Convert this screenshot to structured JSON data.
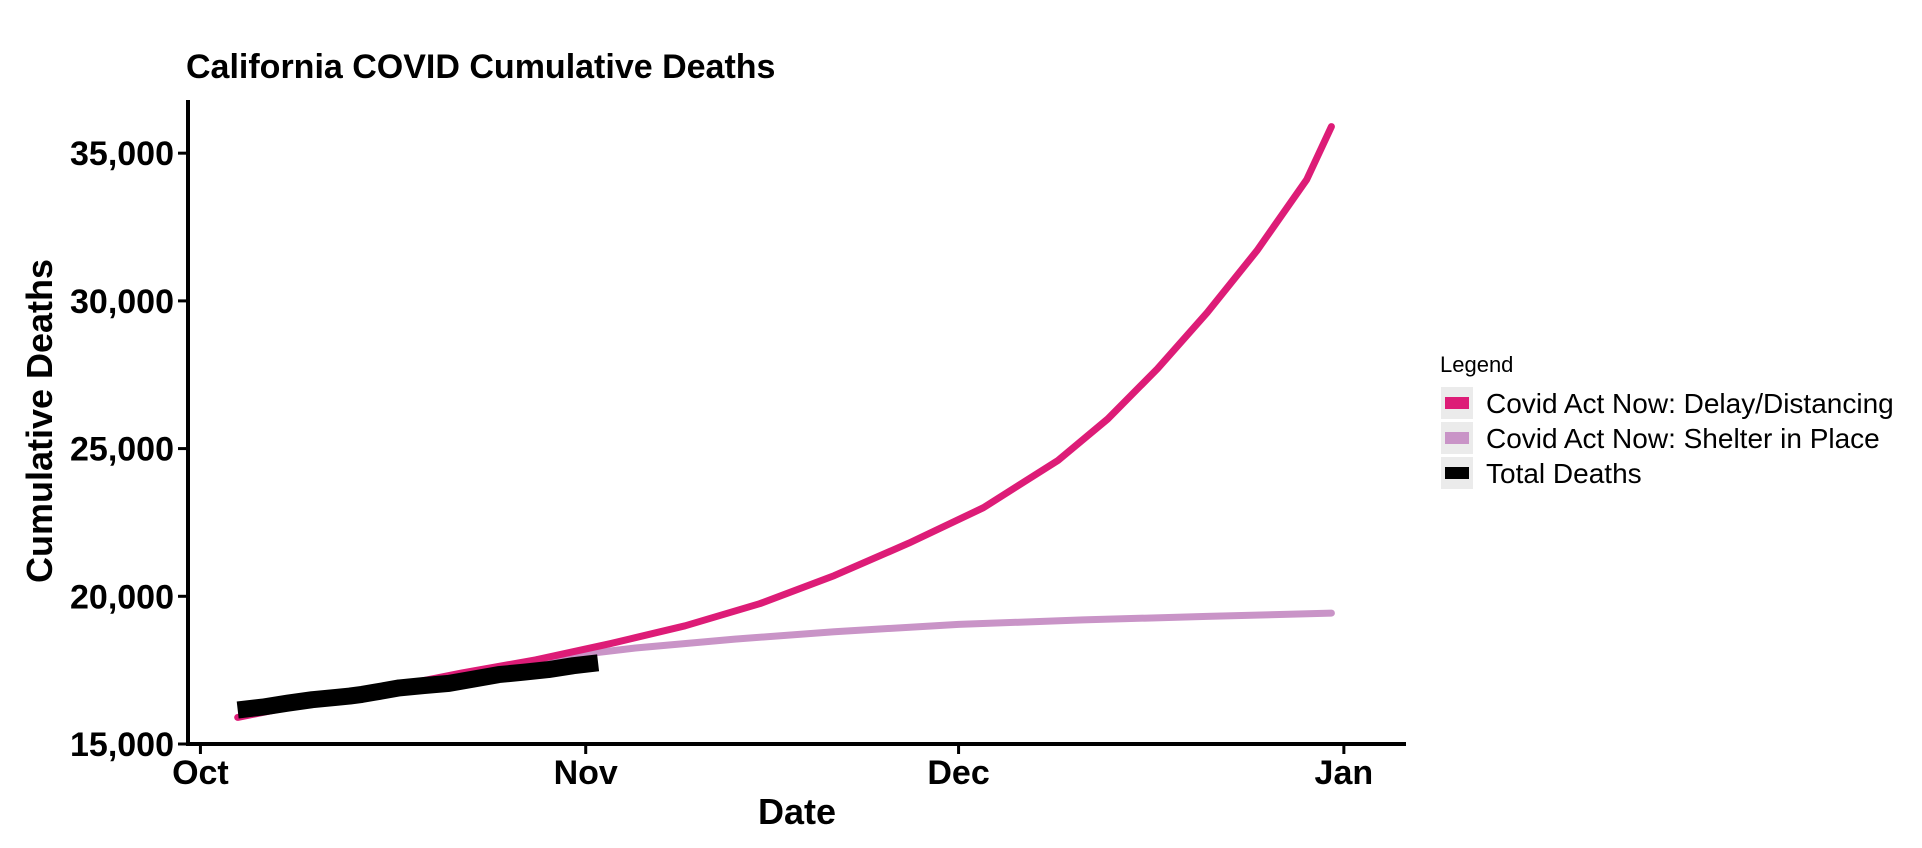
{
  "chart_data": {
    "type": "line",
    "title": "California COVID Cumulative Deaths",
    "xlabel": "Date",
    "ylabel": "Cumulative Deaths",
    "x_range": [
      "2020-09-30",
      "2021-01-06"
    ],
    "ylim": [
      15000,
      36800
    ],
    "x_ticks": [
      {
        "date": "2020-10-01",
        "label": "Oct"
      },
      {
        "date": "2020-11-01",
        "label": "Nov"
      },
      {
        "date": "2020-12-01",
        "label": "Dec"
      },
      {
        "date": "2021-01-01",
        "label": "Jan"
      }
    ],
    "y_ticks": [
      {
        "value": 15000,
        "label": "15,000"
      },
      {
        "value": 20000,
        "label": "20,000"
      },
      {
        "value": 25000,
        "label": "25,000"
      },
      {
        "value": 30000,
        "label": "30,000"
      },
      {
        "value": 35000,
        "label": "35,000"
      }
    ],
    "grid": false,
    "legend": {
      "title": "Legend",
      "position": "right"
    },
    "series": [
      {
        "name": "Covid Act Now: Delay/Distancing",
        "color": "#DD1C77",
        "style": "thin-line",
        "points": [
          {
            "x": "2020-10-04",
            "y": 15900
          },
          {
            "x": "2020-10-10",
            "y": 16400
          },
          {
            "x": "2020-10-16",
            "y": 16900
          },
          {
            "x": "2020-10-22",
            "y": 17400
          },
          {
            "x": "2020-10-28",
            "y": 17850
          },
          {
            "x": "2020-11-03",
            "y": 18400
          },
          {
            "x": "2020-11-09",
            "y": 19000
          },
          {
            "x": "2020-11-15",
            "y": 19750
          },
          {
            "x": "2020-11-21",
            "y": 20700
          },
          {
            "x": "2020-11-27",
            "y": 21800
          },
          {
            "x": "2020-12-03",
            "y": 23000
          },
          {
            "x": "2020-12-09",
            "y": 24600
          },
          {
            "x": "2020-12-13",
            "y": 26000
          },
          {
            "x": "2020-12-17",
            "y": 27700
          },
          {
            "x": "2020-12-21",
            "y": 29600
          },
          {
            "x": "2020-12-25",
            "y": 31700
          },
          {
            "x": "2020-12-29",
            "y": 34100
          },
          {
            "x": "2020-12-31",
            "y": 35900
          }
        ]
      },
      {
        "name": "Covid Act Now: Shelter in Place",
        "color": "#C994C7",
        "style": "thin-line",
        "points": [
          {
            "x": "2020-10-28",
            "y": 17850
          },
          {
            "x": "2020-11-05",
            "y": 18250
          },
          {
            "x": "2020-11-13",
            "y": 18550
          },
          {
            "x": "2020-11-21",
            "y": 18800
          },
          {
            "x": "2020-12-01",
            "y": 19050
          },
          {
            "x": "2020-12-11",
            "y": 19200
          },
          {
            "x": "2020-12-21",
            "y": 19320
          },
          {
            "x": "2020-12-31",
            "y": 19430
          }
        ]
      },
      {
        "name": "Total Deaths",
        "color": "#000000",
        "style": "thick-line",
        "points": [
          {
            "x": "2020-10-04",
            "y": 16150
          },
          {
            "x": "2020-10-06",
            "y": 16250
          },
          {
            "x": "2020-10-08",
            "y": 16380
          },
          {
            "x": "2020-10-10",
            "y": 16500
          },
          {
            "x": "2020-10-12",
            "y": 16580
          },
          {
            "x": "2020-10-13",
            "y": 16620
          },
          {
            "x": "2020-10-14",
            "y": 16680
          },
          {
            "x": "2020-10-15",
            "y": 16750
          },
          {
            "x": "2020-10-17",
            "y": 16900
          },
          {
            "x": "2020-10-19",
            "y": 16980
          },
          {
            "x": "2020-10-21",
            "y": 17050
          },
          {
            "x": "2020-10-23",
            "y": 17200
          },
          {
            "x": "2020-10-25",
            "y": 17350
          },
          {
            "x": "2020-10-27",
            "y": 17430
          },
          {
            "x": "2020-10-29",
            "y": 17520
          },
          {
            "x": "2020-10-31",
            "y": 17650
          },
          {
            "x": "2020-11-02",
            "y": 17750
          }
        ]
      }
    ]
  }
}
